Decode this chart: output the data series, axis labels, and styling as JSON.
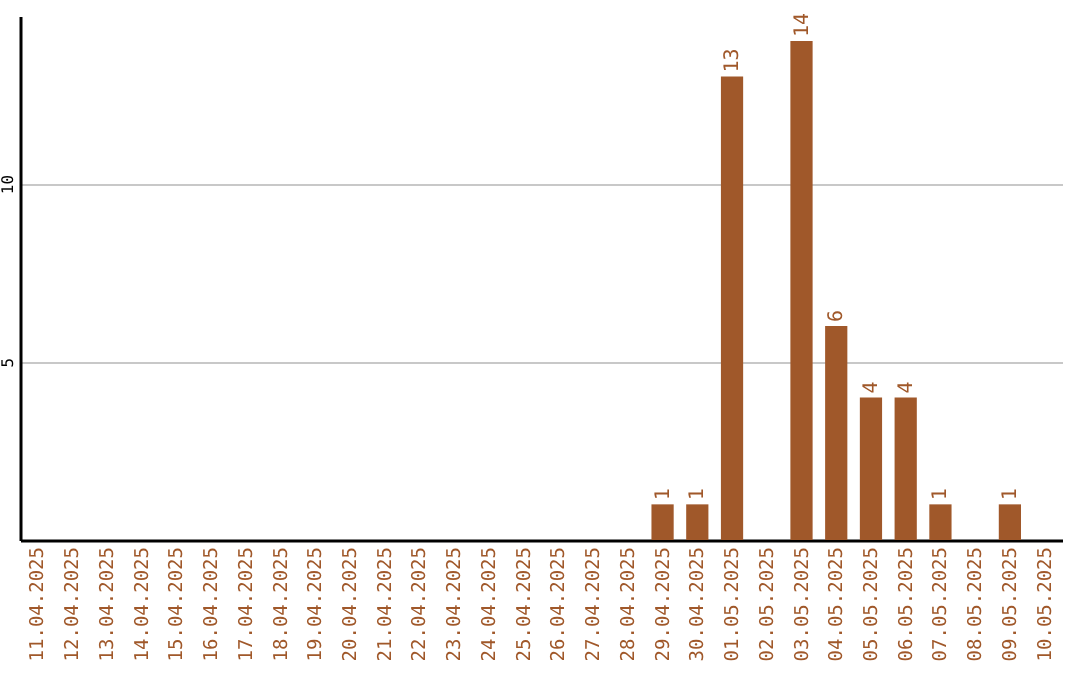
{
  "chart_data": {
    "type": "bar",
    "categories": [
      "11.04.2025",
      "12.04.2025",
      "13.04.2025",
      "14.04.2025",
      "15.04.2025",
      "16.04.2025",
      "17.04.2025",
      "18.04.2025",
      "19.04.2025",
      "20.04.2025",
      "21.04.2025",
      "22.04.2025",
      "23.04.2025",
      "24.04.2025",
      "25.04.2025",
      "26.04.2025",
      "27.04.2025",
      "28.04.2025",
      "29.04.2025",
      "30.04.2025",
      "01.05.2025",
      "02.05.2025",
      "03.05.2025",
      "04.05.2025",
      "05.05.2025",
      "06.05.2025",
      "07.05.2025",
      "08.05.2025",
      "09.05.2025",
      "10.05.2025"
    ],
    "values": [
      0,
      0,
      0,
      0,
      0,
      0,
      0,
      0,
      0,
      0,
      0,
      0,
      0,
      0,
      0,
      0,
      0,
      0,
      1,
      1,
      13,
      0,
      14,
      6,
      4,
      4,
      1,
      0,
      1,
      0
    ],
    "value_labels": [
      null,
      null,
      null,
      null,
      null,
      null,
      null,
      null,
      null,
      null,
      null,
      null,
      null,
      null,
      null,
      null,
      null,
      null,
      "1",
      "1",
      "13",
      null,
      "14",
      "6",
      "4",
      "4",
      "1",
      null,
      "1",
      null
    ],
    "color": "#a0582a",
    "ylim": [
      0,
      14.7
    ],
    "yticks": [
      5,
      10
    ],
    "grid": "y"
  }
}
